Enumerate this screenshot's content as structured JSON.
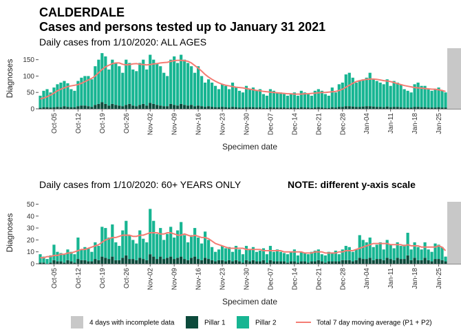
{
  "title": "CALDERDALE",
  "subtitle": "Cases and persons tested up to January 31 2021",
  "incomplete": {
    "label": "4 days with incomplete data",
    "days": 4,
    "color": "#c8c8c8"
  },
  "chart_data": [
    {
      "type": "bar",
      "stacked": true,
      "title": "Daily cases from 1/10/2020: ALL AGES",
      "xlabel": "Specimen date",
      "ylabel": "Diagnoses",
      "categories": [
        null,
        null,
        null,
        null,
        "Oct-05",
        null,
        null,
        null,
        null,
        null,
        null,
        "Oct-12",
        null,
        null,
        null,
        null,
        null,
        null,
        "Oct-19",
        null,
        null,
        null,
        null,
        null,
        null,
        "Oct-26",
        null,
        null,
        null,
        null,
        null,
        null,
        "Nov-02",
        null,
        null,
        null,
        null,
        null,
        null,
        "Nov-09",
        null,
        null,
        null,
        null,
        null,
        null,
        "Nov-16",
        null,
        null,
        null,
        null,
        null,
        null,
        "Nov-23",
        null,
        null,
        null,
        null,
        null,
        null,
        "Nov-30",
        null,
        null,
        null,
        null,
        null,
        null,
        "Dec-07",
        null,
        null,
        null,
        null,
        null,
        null,
        "Dec-14",
        null,
        null,
        null,
        null,
        null,
        null,
        "Dec-21",
        null,
        null,
        null,
        null,
        null,
        null,
        "Dec-28",
        null,
        null,
        null,
        null,
        null,
        null,
        "Jan-04",
        null,
        null,
        null,
        null,
        null,
        null,
        "Jan-11",
        null,
        null,
        null,
        null,
        null,
        null,
        "Jan-18",
        null,
        null,
        null,
        null,
        null,
        null,
        "Jan-25",
        null,
        null,
        null,
        null,
        null,
        null
      ],
      "ylim": [
        0,
        185
      ],
      "yticks": [
        0,
        50,
        100,
        150
      ],
      "series": [
        {
          "name": "Pillar 1",
          "color": "#0c4a3b",
          "values": [
            3,
            5,
            5,
            4,
            5,
            6,
            5,
            8,
            6,
            5,
            5,
            8,
            10,
            10,
            8,
            6,
            12,
            15,
            20,
            15,
            10,
            15,
            12,
            10,
            8,
            12,
            15,
            10,
            8,
            12,
            15,
            10,
            18,
            15,
            12,
            10,
            8,
            8,
            15,
            12,
            10,
            15,
            12,
            10,
            12,
            8,
            10,
            8,
            6,
            8,
            6,
            5,
            5,
            6,
            5,
            4,
            6,
            5,
            4,
            4,
            5,
            5,
            5,
            4,
            5,
            3,
            3,
            5,
            4,
            4,
            4,
            4,
            3,
            4,
            4,
            3,
            5,
            4,
            4,
            3,
            4,
            5,
            4,
            3,
            3,
            5,
            4,
            6,
            6,
            8,
            8,
            7,
            6,
            6,
            7,
            8,
            8,
            7,
            6,
            6,
            5,
            7,
            5,
            6,
            6,
            5,
            4,
            4,
            4,
            6,
            6,
            5,
            5,
            4,
            4,
            4,
            5,
            4,
            4,
            null,
            null,
            null,
            null
          ]
        },
        {
          "name": "Pillar 2",
          "color": "#17b592",
          "values": [
            37,
            50,
            55,
            46,
            60,
            69,
            75,
            77,
            72,
            55,
            50,
            77,
            85,
            90,
            92,
            84,
            118,
            135,
            150,
            145,
            110,
            135,
            128,
            120,
            102,
            138,
            125,
            110,
            107,
            128,
            135,
            110,
            147,
            135,
            128,
            120,
            102,
            92,
            135,
            148,
            130,
            150,
            138,
            130,
            118,
            102,
            120,
            92,
            74,
            82,
            74,
            65,
            55,
            69,
            65,
            56,
            74,
            60,
            51,
            46,
            65,
            55,
            60,
            51,
            55,
            42,
            37,
            55,
            51,
            46,
            46,
            41,
            37,
            41,
            46,
            37,
            50,
            46,
            41,
            37,
            51,
            55,
            51,
            42,
            37,
            60,
            46,
            69,
            74,
            97,
            102,
            88,
            74,
            79,
            83,
            87,
            102,
            83,
            79,
            74,
            70,
            83,
            65,
            79,
            74,
            70,
            56,
            51,
            46,
            69,
            74,
            65,
            65,
            56,
            51,
            56,
            60,
            51,
            46,
            null,
            null,
            null,
            null
          ]
        },
        {
          "name": "Total 7 day moving average (P1 + P2)",
          "color": "#f47c73",
          "type": "line",
          "values": [
            30,
            33,
            37,
            42,
            48,
            55,
            60,
            64,
            68,
            70,
            72,
            74,
            78,
            83,
            88,
            93,
            100,
            110,
            120,
            128,
            133,
            138,
            140,
            140,
            136,
            134,
            135,
            137,
            138,
            136,
            135,
            134,
            135,
            137,
            138,
            140,
            141,
            142,
            145,
            147,
            148,
            148,
            147,
            145,
            140,
            132,
            124,
            115,
            105,
            97,
            90,
            84,
            79,
            75,
            72,
            70,
            68,
            66,
            65,
            64,
            62,
            60,
            58,
            56,
            55,
            53,
            52,
            51,
            50,
            49,
            48,
            47,
            46,
            46,
            45,
            45,
            45,
            46,
            46,
            47,
            48,
            49,
            50,
            50,
            51,
            52,
            53,
            56,
            60,
            66,
            72,
            78,
            83,
            86,
            88,
            90,
            91,
            91,
            90,
            88,
            86,
            85,
            83,
            80,
            77,
            74,
            71,
            69,
            67,
            65,
            64,
            63,
            62,
            61,
            60,
            60,
            58,
            56,
            53,
            null,
            null,
            null,
            null
          ]
        }
      ]
    },
    {
      "type": "bar",
      "stacked": true,
      "title": "Daily cases from 1/10/2020: 60+ YEARS ONLY",
      "note": "NOTE: different y-axis scale",
      "xlabel": "Specimen date",
      "ylabel": "Diagnoses",
      "categories": [
        null,
        null,
        null,
        null,
        "Oct-05",
        null,
        null,
        null,
        null,
        null,
        null,
        "Oct-12",
        null,
        null,
        null,
        null,
        null,
        null,
        "Oct-19",
        null,
        null,
        null,
        null,
        null,
        null,
        "Oct-26",
        null,
        null,
        null,
        null,
        null,
        null,
        "Nov-02",
        null,
        null,
        null,
        null,
        null,
        null,
        "Nov-09",
        null,
        null,
        null,
        null,
        null,
        null,
        "Nov-16",
        null,
        null,
        null,
        null,
        null,
        null,
        "Nov-23",
        null,
        null,
        null,
        null,
        null,
        null,
        "Nov-30",
        null,
        null,
        null,
        null,
        null,
        null,
        "Dec-07",
        null,
        null,
        null,
        null,
        null,
        null,
        "Dec-14",
        null,
        null,
        null,
        null,
        null,
        null,
        "Dec-21",
        null,
        null,
        null,
        null,
        null,
        null,
        "Dec-28",
        null,
        null,
        null,
        null,
        null,
        null,
        "Jan-04",
        null,
        null,
        null,
        null,
        null,
        null,
        "Jan-11",
        null,
        null,
        null,
        null,
        null,
        null,
        "Jan-18",
        null,
        null,
        null,
        null,
        null,
        null,
        "Jan-25",
        null,
        null,
        null,
        null,
        null,
        null
      ],
      "ylim": [
        0,
        52
      ],
      "yticks": [
        0,
        10,
        20,
        30,
        40,
        50
      ],
      "series": [
        {
          "name": "Pillar 1",
          "color": "#0c4a3b",
          "values": [
            1,
            1,
            0,
            1,
            3,
            2,
            2,
            1,
            3,
            2,
            1,
            4,
            3,
            3,
            2,
            2,
            4,
            3,
            6,
            5,
            4,
            6,
            3,
            3,
            5,
            7,
            4,
            4,
            3,
            5,
            4,
            3,
            8,
            6,
            4,
            6,
            4,
            5,
            6,
            4,
            5,
            6,
            4,
            3,
            5,
            6,
            4,
            3,
            5,
            4,
            3,
            2,
            3,
            3,
            2,
            3,
            2,
            3,
            2,
            1,
            3,
            2,
            3,
            2,
            2,
            3,
            1,
            3,
            2,
            2,
            2,
            2,
            1,
            2,
            2,
            1,
            2,
            2,
            1,
            2,
            2,
            3,
            2,
            1,
            2,
            2,
            2,
            2,
            3,
            3,
            3,
            2,
            3,
            5,
            4,
            4,
            5,
            3,
            4,
            4,
            3,
            5,
            4,
            3,
            5,
            4,
            4,
            7,
            3,
            5,
            3,
            3,
            5,
            3,
            2,
            4,
            4,
            3,
            2,
            null,
            null,
            null,
            null
          ]
        },
        {
          "name": "Pillar 2",
          "color": "#17b592",
          "values": [
            7,
            5,
            4,
            6,
            13,
            8,
            7,
            7,
            9,
            8,
            7,
            18,
            9,
            11,
            11,
            8,
            14,
            12,
            25,
            25,
            18,
            27,
            15,
            12,
            23,
            29,
            20,
            16,
            14,
            23,
            17,
            15,
            38,
            30,
            21,
            24,
            16,
            20,
            25,
            18,
            23,
            29,
            20,
            15,
            19,
            24,
            18,
            14,
            22,
            16,
            11,
            8,
            9,
            12,
            11,
            11,
            8,
            12,
            10,
            7,
            12,
            10,
            11,
            8,
            9,
            10,
            7,
            12,
            8,
            10,
            8,
            7,
            7,
            8,
            10,
            6,
            8,
            7,
            7,
            8,
            9,
            9,
            6,
            6,
            8,
            7,
            9,
            6,
            9,
            12,
            11,
            8,
            9,
            19,
            16,
            14,
            17,
            11,
            12,
            14,
            9,
            15,
            12,
            10,
            13,
            11,
            12,
            19,
            9,
            13,
            11,
            9,
            13,
            9,
            8,
            13,
            12,
            11,
            4,
            null,
            null,
            null,
            null
          ]
        },
        {
          "name": "Total 7 day moving average (P1 + P2)",
          "color": "#f47c73",
          "type": "line",
          "values": [
            5,
            5,
            6,
            6,
            7,
            7,
            8,
            8,
            9,
            9,
            10,
            11,
            12,
            12,
            13,
            14,
            15,
            16,
            18,
            20,
            21,
            22,
            22,
            23,
            24,
            24,
            24,
            23,
            23,
            24,
            24,
            25,
            26,
            26,
            26,
            25,
            25,
            26,
            26,
            25,
            24,
            24,
            25,
            24,
            23,
            24,
            23,
            22,
            22,
            21,
            19,
            17,
            16,
            15,
            14,
            13,
            13,
            13,
            13,
            13,
            12,
            12,
            12,
            12,
            12,
            11,
            11,
            11,
            11,
            11,
            11,
            10,
            10,
            10,
            10,
            10,
            10,
            9,
            9,
            9,
            10,
            10,
            10,
            9,
            9,
            9,
            9,
            10,
            10,
            11,
            11,
            11,
            12,
            13,
            14,
            15,
            16,
            17,
            17,
            17,
            17,
            17,
            16,
            16,
            16,
            16,
            15,
            16,
            15,
            15,
            15,
            14,
            14,
            14,
            14,
            14,
            15,
            14,
            11,
            null,
            null,
            null,
            null
          ]
        }
      ]
    }
  ]
}
